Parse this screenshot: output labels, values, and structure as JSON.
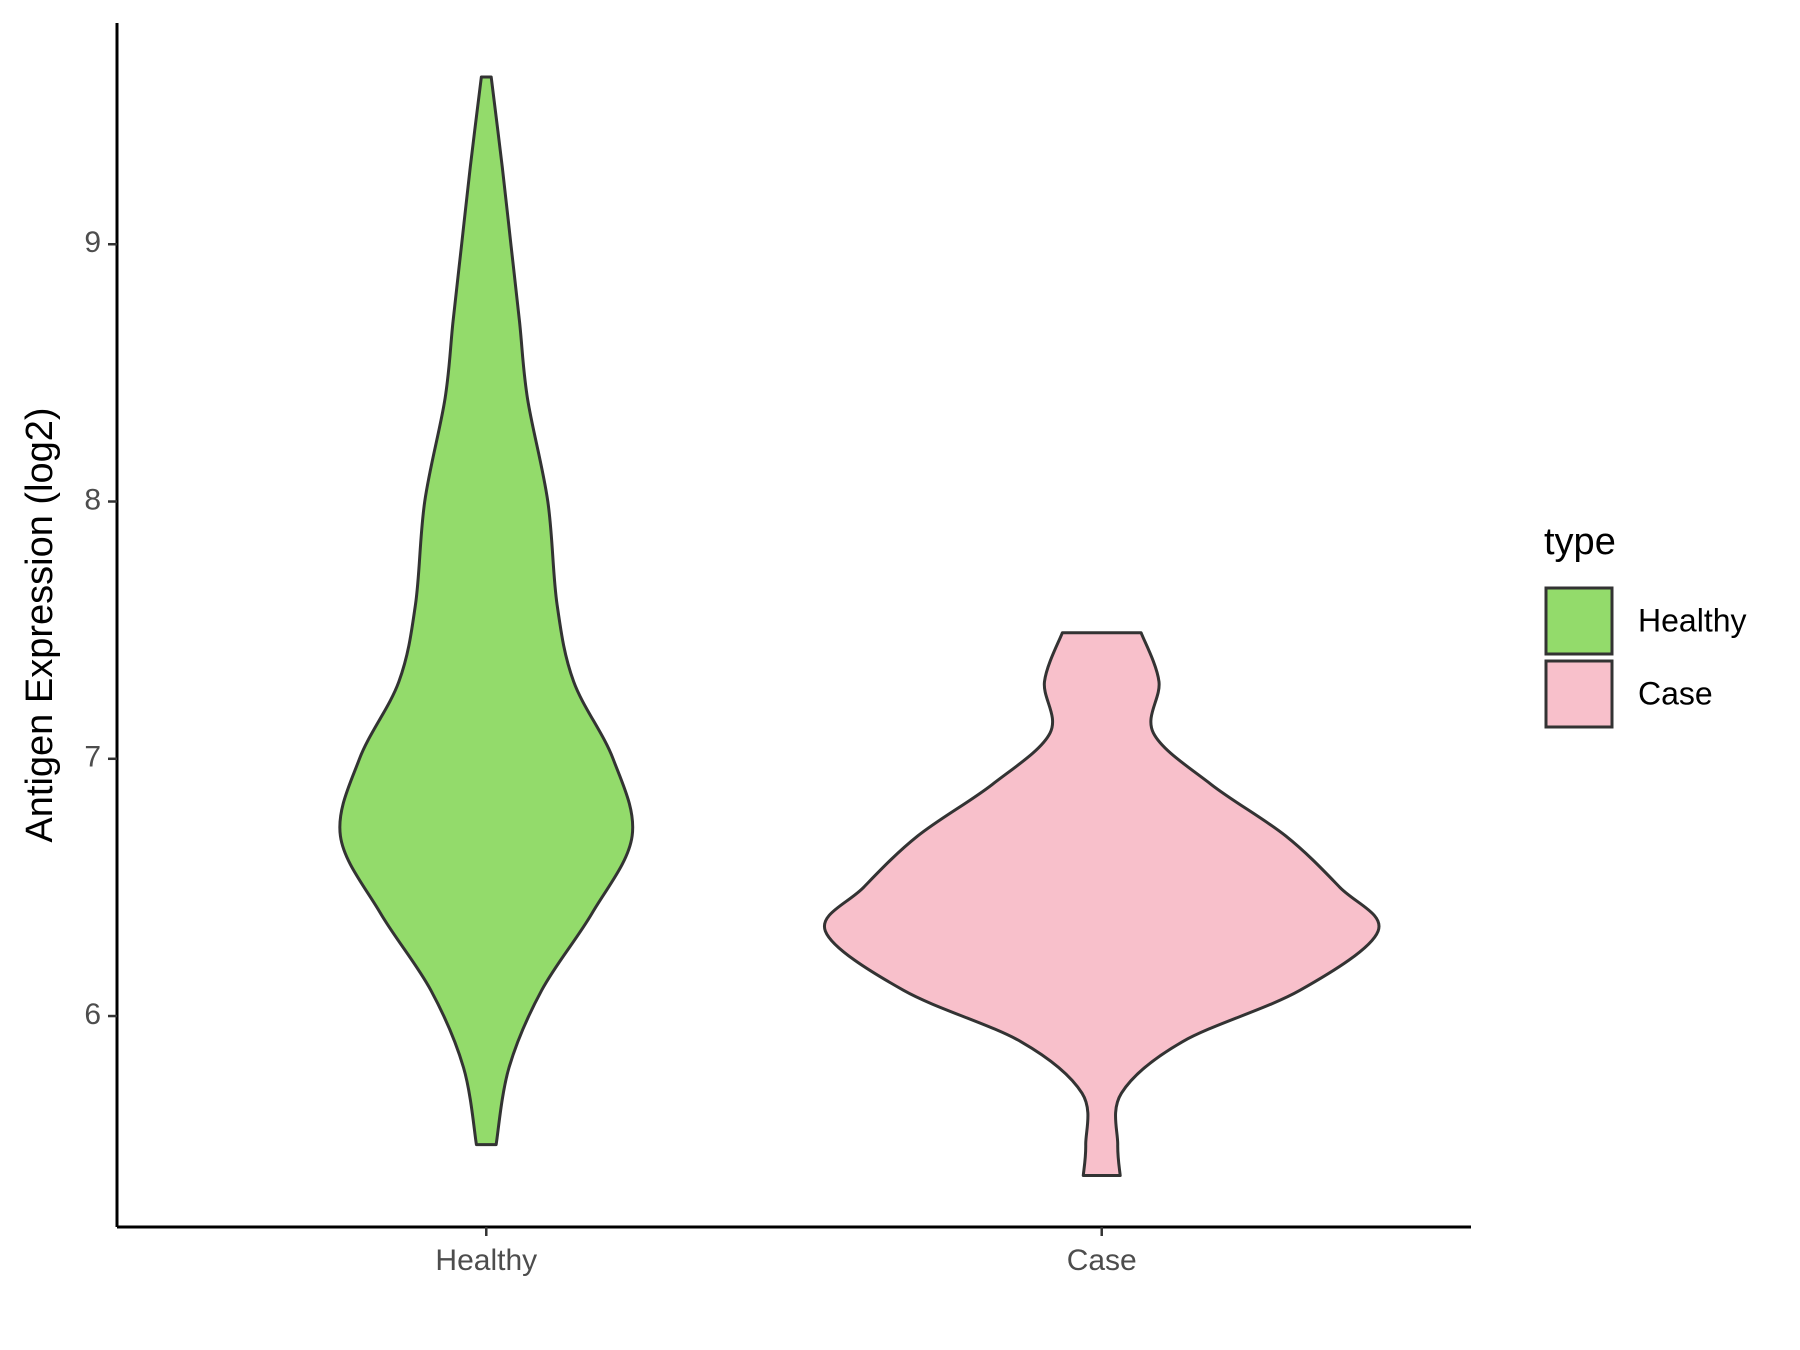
{
  "chart_data": {
    "type": "violin",
    "y_axis_label": "Antigen Expression (log2)",
    "categories": [
      "Healthy",
      "Case"
    ],
    "legend_title": "type",
    "legend_position": "right",
    "ylim": [
      5.18,
      9.86
    ],
    "yticks": [
      6,
      7,
      8,
      9
    ],
    "grid": false,
    "series": [
      {
        "name": "Healthy",
        "color": "#93db6b",
        "y": [
          9.65,
          9.3,
          9.0,
          8.7,
          8.4,
          8.0,
          7.6,
          7.3,
          7.0,
          6.7,
          6.4,
          6.1,
          5.8,
          5.5
        ],
        "density": [
          0.008,
          0.026,
          0.04,
          0.054,
          0.067,
          0.1,
          0.115,
          0.142,
          0.206,
          0.237,
          0.172,
          0.09,
          0.037,
          0.016
        ]
      },
      {
        "name": "Case",
        "color": "#f8c0cb",
        "y": [
          7.49,
          7.3,
          7.1,
          6.9,
          6.7,
          6.5,
          6.33,
          6.1,
          5.9,
          5.7,
          5.5,
          5.38
        ],
        "density": [
          0.064,
          0.093,
          0.084,
          0.178,
          0.299,
          0.387,
          0.449,
          0.322,
          0.131,
          0.032,
          0.026,
          0.03
        ]
      }
    ]
  }
}
